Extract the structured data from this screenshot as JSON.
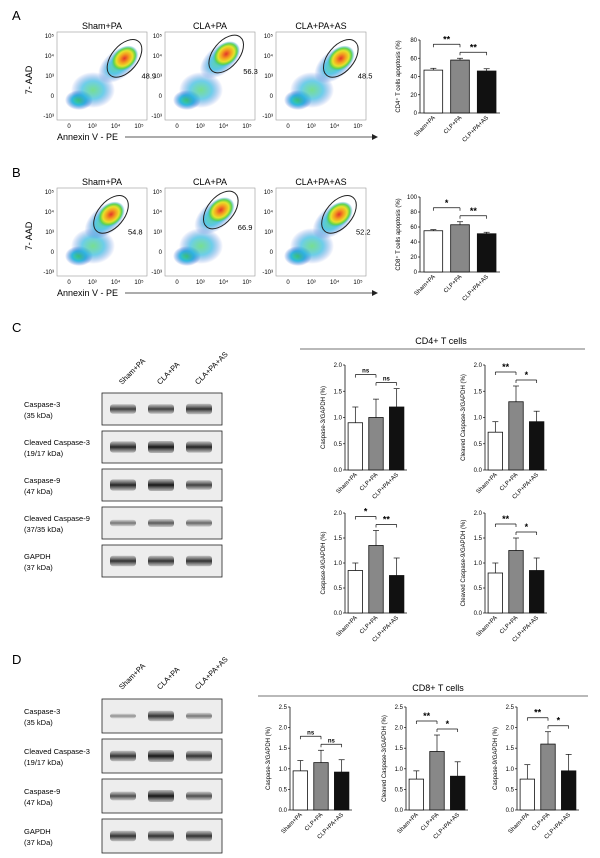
{
  "panel_labels": [
    "A",
    "B",
    "C",
    "D"
  ],
  "flow": {
    "ylabel": "7- AAD",
    "xlabel": "Annexin V - PE",
    "y_ticks": [
      "10⁵",
      "10⁴",
      "10³",
      "0",
      "-10³"
    ],
    "x_ticks": [
      "0",
      "10³",
      "10⁴",
      "10⁵"
    ],
    "rows": [
      {
        "plots": [
          {
            "title": "Sham+PA",
            "pct": "48.9"
          },
          {
            "title": "CLA+PA",
            "pct": "56.3"
          },
          {
            "title": "CLA+PA+AS",
            "pct": "48.5"
          }
        ]
      },
      {
        "plots": [
          {
            "title": "Sham+PA",
            "pct": "54.8"
          },
          {
            "title": "CLA+PA",
            "pct": "66.9"
          },
          {
            "title": "CLA+PA+AS",
            "pct": "52.2"
          }
        ]
      }
    ]
  },
  "western": {
    "c": {
      "lanes": [
        "Sham+PA",
        "CLA+PA",
        "CLA+PA+AS"
      ],
      "header": "CD4+ T cells",
      "proteins": [
        {
          "name": "Caspase-3",
          "kda": "(35 kDa)"
        },
        {
          "name": "Cleaved Caspase-3",
          "kda": "(19/17 kDa)"
        },
        {
          "name": "Caspase-9",
          "kda": "(47 kDa)"
        },
        {
          "name": "Cleaved Caspase-9",
          "kda": "(37/35 kDa)"
        },
        {
          "name": "GAPDH",
          "kda": "(37 kDa)"
        }
      ]
    },
    "d": {
      "lanes": [
        "Sham+PA",
        "CLA+PA",
        "CLA+PA+AS"
      ],
      "header": "CD8+ T cells",
      "proteins": [
        {
          "name": "Caspase-3",
          "kda": "(35 kDa)"
        },
        {
          "name": "Cleaved Caspase-3",
          "kda": "(19/17 kDa)"
        },
        {
          "name": "Caspase-9",
          "kda": "(47 kDa)"
        },
        {
          "name": "GAPDH",
          "kda": "(37 kDa)"
        }
      ]
    }
  },
  "colors": {
    "sham": "#ffffff",
    "clp": "#888888",
    "as": "#111111",
    "axis": "#111111"
  },
  "chart_data": [
    {
      "type": "bar",
      "panel": "A",
      "categories": [
        "Sham+PA",
        "CLP+PA",
        "CLP+PA+AS"
      ],
      "values": [
        47,
        58,
        46
      ],
      "errors": [
        2,
        2,
        2.5
      ],
      "ylabel": "CD4⁺ T cells apoptosis (%)",
      "ylim": [
        0,
        80
      ],
      "yticks": [
        0,
        20,
        40,
        60,
        80
      ],
      "sig": [
        {
          "from": 0,
          "to": 1,
          "label": "**"
        },
        {
          "from": 1,
          "to": 2,
          "label": "**"
        }
      ]
    },
    {
      "type": "bar",
      "panel": "B",
      "categories": [
        "Sham+PA",
        "CLP+PA",
        "CLP+PA+AS"
      ],
      "values": [
        55,
        63,
        51
      ],
      "errors": [
        1.5,
        4,
        2
      ],
      "ylabel": "CD8⁺ T cells apoptosis (%)",
      "ylim": [
        0,
        100
      ],
      "yticks": [
        0,
        20,
        40,
        60,
        80,
        100
      ],
      "sig": [
        {
          "from": 0,
          "to": 1,
          "label": "*"
        },
        {
          "from": 1,
          "to": 2,
          "label": "**"
        }
      ]
    },
    {
      "type": "bar",
      "panel": "C1",
      "categories": [
        "Sham+PA",
        "CLP+PA",
        "CLP+PA+AS"
      ],
      "values": [
        0.9,
        1.0,
        1.2
      ],
      "errors": [
        0.3,
        0.35,
        0.35
      ],
      "ylabel": "Caspase-3/GAPDH (%)",
      "ylim": [
        0,
        2.0
      ],
      "yticks": [
        0.0,
        0.5,
        1.0,
        1.5,
        2.0
      ],
      "sig": [
        {
          "from": 0,
          "to": 1,
          "label": "ns"
        },
        {
          "from": 1,
          "to": 2,
          "label": "ns"
        }
      ]
    },
    {
      "type": "bar",
      "panel": "C2",
      "categories": [
        "Sham+PA",
        "CLP+PA",
        "CLP+PA+AS"
      ],
      "values": [
        0.72,
        1.3,
        0.92
      ],
      "errors": [
        0.2,
        0.3,
        0.2
      ],
      "ylabel": "Cleaved Caspase-3/GAPDH (%)",
      "ylim": [
        0,
        2.0
      ],
      "yticks": [
        0.0,
        0.5,
        1.0,
        1.5,
        2.0
      ],
      "sig": [
        {
          "from": 0,
          "to": 1,
          "label": "**"
        },
        {
          "from": 1,
          "to": 2,
          "label": "*"
        }
      ]
    },
    {
      "type": "bar",
      "panel": "C3",
      "categories": [
        "Sham+PA",
        "CLP+PA",
        "CLP+PA+AS"
      ],
      "values": [
        0.85,
        1.35,
        0.75
      ],
      "errors": [
        0.15,
        0.3,
        0.35
      ],
      "ylabel": "Caspase-9/GAPDH (%)",
      "ylim": [
        0,
        2.0
      ],
      "yticks": [
        0.0,
        0.5,
        1.0,
        1.5,
        2.0
      ],
      "sig": [
        {
          "from": 0,
          "to": 1,
          "label": "*"
        },
        {
          "from": 1,
          "to": 2,
          "label": "**"
        }
      ]
    },
    {
      "type": "bar",
      "panel": "C4",
      "categories": [
        "Sham+PA",
        "CLP+PA",
        "CLP+PA+AS"
      ],
      "values": [
        0.8,
        1.25,
        0.85
      ],
      "errors": [
        0.2,
        0.25,
        0.25
      ],
      "ylabel": "Cleaved Caspase-9/GAPDH (%)",
      "ylim": [
        0,
        2.0
      ],
      "yticks": [
        0.0,
        0.5,
        1.0,
        1.5,
        2.0
      ],
      "sig": [
        {
          "from": 0,
          "to": 1,
          "label": "**"
        },
        {
          "from": 1,
          "to": 2,
          "label": "*"
        }
      ]
    },
    {
      "type": "bar",
      "panel": "D1",
      "categories": [
        "Sham+PA",
        "CLP+PA",
        "CLP+PA+AS"
      ],
      "values": [
        0.95,
        1.15,
        0.92
      ],
      "errors": [
        0.25,
        0.3,
        0.3
      ],
      "ylabel": "Caspase-3/GAPDH (%)",
      "ylim": [
        0,
        2.5
      ],
      "yticks": [
        0.0,
        0.5,
        1.0,
        1.5,
        2.0,
        2.5
      ],
      "sig": [
        {
          "from": 0,
          "to": 1,
          "label": "ns"
        },
        {
          "from": 1,
          "to": 2,
          "label": "ns"
        }
      ]
    },
    {
      "type": "bar",
      "panel": "D2",
      "categories": [
        "Sham+PA",
        "CLP+PA",
        "CLP+PA+AS"
      ],
      "values": [
        0.75,
        1.42,
        0.82
      ],
      "errors": [
        0.2,
        0.4,
        0.35
      ],
      "ylabel": "Cleaved Caspase-3/GAPDH (%)",
      "ylim": [
        0,
        2.5
      ],
      "yticks": [
        0.0,
        0.5,
        1.0,
        1.5,
        2.0,
        2.5
      ],
      "sig": [
        {
          "from": 0,
          "to": 1,
          "label": "**"
        },
        {
          "from": 1,
          "to": 2,
          "label": "*"
        }
      ]
    },
    {
      "type": "bar",
      "panel": "D3",
      "categories": [
        "Sham+PA",
        "CLP+PA",
        "CLP+PA+AS"
      ],
      "values": [
        0.75,
        1.6,
        0.95
      ],
      "errors": [
        0.35,
        0.3,
        0.4
      ],
      "ylabel": "Caspase-9/GAPDH (%)",
      "ylim": [
        0,
        2.5
      ],
      "yticks": [
        0.0,
        0.5,
        1.0,
        1.5,
        2.0,
        2.5
      ],
      "sig": [
        {
          "from": 0,
          "to": 1,
          "label": "**"
        },
        {
          "from": 1,
          "to": 2,
          "label": "*"
        }
      ]
    }
  ]
}
